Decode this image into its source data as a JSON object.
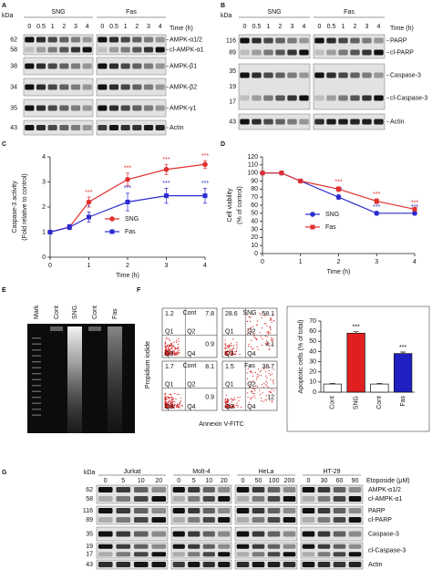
{
  "panel_A": {
    "label": "A",
    "kda": "kDa",
    "groups": [
      "SNG",
      "Fas"
    ],
    "time_label": "Time (h)",
    "times": [
      0,
      0.5,
      1,
      2,
      3,
      4
    ],
    "rows": [
      {
        "markers": [
          62,
          58
        ],
        "names": [
          "AMPK-α1/2",
          "cl-AMPK-α1"
        ]
      },
      {
        "markers": [
          38
        ],
        "names": [
          "AMPK-β1"
        ]
      },
      {
        "markers": [
          34
        ],
        "names": [
          "AMPK-β2"
        ]
      },
      {
        "markers": [
          35
        ],
        "names": [
          "AMPK-γ1"
        ]
      },
      {
        "markers": [
          43
        ],
        "names": [
          "Actin"
        ]
      }
    ]
  },
  "panel_B": {
    "label": "B",
    "kda": "kDa",
    "groups": [
      "SNG",
      "Fas"
    ],
    "time_label": "Time (h)",
    "times": [
      0,
      0.5,
      1,
      2,
      3,
      4
    ],
    "rows": [
      {
        "markers": [
          116,
          89
        ],
        "names": [
          "PARP",
          "cl-PARP"
        ]
      },
      {
        "markers": [
          35,
          19,
          17
        ],
        "names": [
          "Caspase-3",
          "cl-Caspase-3"
        ]
      },
      {
        "markers": [
          43
        ],
        "names": [
          "Actin"
        ]
      }
    ]
  },
  "chart_data": [
    {
      "type": "line",
      "panel_label": "C",
      "x_label": "Time (h)",
      "y_label": [
        "Caspase-3 activity",
        "(Fold relative to control)"
      ],
      "x": [
        0,
        0.5,
        1,
        2,
        3,
        4
      ],
      "xlim": [
        0,
        4
      ],
      "xticks": [
        0,
        1,
        2,
        3,
        4
      ],
      "ylim": [
        0,
        4
      ],
      "yticks": [
        0,
        1,
        2,
        3,
        4
      ],
      "series": [
        {
          "name": "SNG",
          "color": "#e03030",
          "marker": "circle",
          "values": [
            1,
            1.2,
            2.2,
            3.1,
            3.5,
            3.7
          ],
          "errors": [
            0.05,
            0.1,
            0.2,
            0.25,
            0.2,
            0.15
          ],
          "annotations": [
            null,
            null,
            "***",
            "***",
            "***",
            "***"
          ]
        },
        {
          "name": "Fas",
          "color": "#2b2bd0",
          "marker": "square",
          "values": [
            1,
            1.2,
            1.6,
            2.2,
            2.45,
            2.45
          ],
          "errors": [
            0.05,
            0.1,
            0.2,
            0.35,
            0.3,
            0.3
          ],
          "annotations": [
            null,
            null,
            "*",
            "***",
            "***",
            "***"
          ]
        }
      ]
    },
    {
      "type": "line",
      "panel_label": "D",
      "x_label": "Time (h)",
      "y_label": [
        "Cell viability",
        "(% of control)"
      ],
      "x": [
        0,
        0.5,
        1,
        2,
        3,
        4
      ],
      "xlim": [
        0,
        4
      ],
      "xticks": [
        0,
        1,
        2,
        3,
        4
      ],
      "ylim": [
        0,
        120
      ],
      "yticks": [
        0,
        10,
        20,
        30,
        40,
        50,
        60,
        70,
        80,
        90,
        100,
        110,
        120
      ],
      "series": [
        {
          "name": "SNG",
          "color": "#2b2bd0",
          "marker": "circle",
          "values": [
            100,
            100,
            90,
            70,
            50,
            50
          ],
          "errors": [
            1,
            2,
            2,
            3,
            2,
            2
          ],
          "annotations": [
            null,
            null,
            null,
            "***",
            "***",
            "***"
          ]
        },
        {
          "name": "Fas",
          "color": "#e03030",
          "marker": "square",
          "values": [
            100,
            100,
            90,
            80,
            65,
            55
          ],
          "errors": [
            1,
            2,
            2,
            3,
            3,
            2
          ],
          "annotations": [
            null,
            null,
            null,
            "***",
            "***",
            "***"
          ]
        }
      ]
    },
    {
      "type": "bar",
      "y_label": [
        "Apoptotic cells (% of total)"
      ],
      "categories": [
        "Cont",
        "SNG",
        "Cont",
        "Fas"
      ],
      "values": [
        8,
        58,
        8,
        38
      ],
      "colors": [
        "#ffffff",
        "#e02020",
        "#ffffff",
        "#2020c0"
      ],
      "errors": [
        0.5,
        1.5,
        0.5,
        1.5
      ],
      "annotations": [
        null,
        "***",
        null,
        "***"
      ],
      "ylim": [
        0,
        70
      ],
      "yticks": [
        0,
        10,
        20,
        30,
        40,
        50,
        60,
        70
      ]
    }
  ],
  "panel_E": {
    "label": "E",
    "lanes": [
      "Mark",
      "Cont",
      "SNG",
      "Cont",
      "Fas"
    ]
  },
  "panel_F": {
    "label": "F",
    "y_label": "Propidium iodide",
    "x_label": "Annexin V-FITC",
    "quadrant_names": [
      "Q1",
      "Q2",
      "Q3",
      "Q4"
    ],
    "plots": [
      {
        "title": "Cont",
        "quadrants": [
          1.2,
          7.8,
          0.9
        ]
      },
      {
        "title": "SNG",
        "quadrants": [
          28.6,
          58.1,
          4.1
        ]
      },
      {
        "title": "Cont",
        "quadrants": [
          1.7,
          8.1,
          0.9
        ]
      },
      {
        "title": "Fas",
        "quadrants": [
          1.5,
          38.7,
          12
        ]
      }
    ]
  },
  "panel_G": {
    "label": "G",
    "kda": "kDa",
    "treatment": "Etoposide (μM)",
    "cell_lines": [
      {
        "name": "Jurkat",
        "doses": [
          0,
          5,
          10,
          20
        ]
      },
      {
        "name": "Molt-4",
        "doses": [
          0,
          5,
          10,
          20
        ]
      },
      {
        "name": "HeLa",
        "doses": [
          0,
          50,
          100,
          200
        ]
      },
      {
        "name": "HT-29",
        "doses": [
          0,
          30,
          60,
          90
        ]
      }
    ],
    "rows": [
      {
        "markers": [
          62,
          58
        ],
        "names": [
          "AMPK-α1/2",
          "cl-AMPK-α1"
        ]
      },
      {
        "markers": [
          116,
          89
        ],
        "names": [
          "PARP",
          "cl-PARP"
        ]
      },
      {
        "markers": [
          35
        ],
        "names": [
          "Caspase-3"
        ]
      },
      {
        "markers": [
          19,
          17
        ],
        "names": [
          "cl-Caspase-3"
        ]
      },
      {
        "markers": [
          43
        ],
        "names": [
          "Actin"
        ]
      }
    ]
  }
}
